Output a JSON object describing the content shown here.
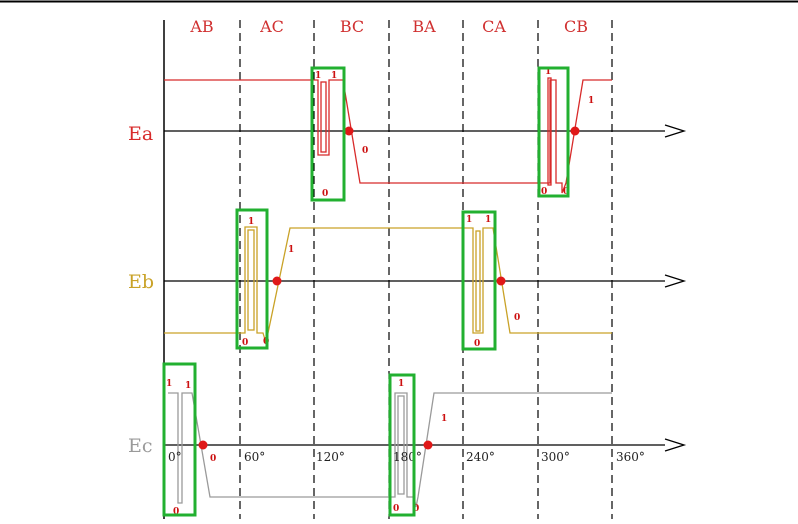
{
  "segments": [
    "AB",
    "AC",
    "BC",
    "BA",
    "CA",
    "CB"
  ],
  "angles": [
    "0°",
    "60°",
    "120°",
    "180°",
    "240°",
    "300°",
    "360°"
  ],
  "rows": [
    {
      "label": "Ea",
      "color": "#d82a2a"
    },
    {
      "label": "Eb",
      "color": "#c9a227"
    },
    {
      "label": "Ec",
      "color": "#9a9a9a"
    }
  ],
  "markers": {
    "one": "1",
    "zero": "0"
  },
  "colors": {
    "box": "#22b030",
    "crossing": "#e01818",
    "marker_text": "#cc1010",
    "segment_text": "#d03030",
    "axis": "#000000"
  }
}
